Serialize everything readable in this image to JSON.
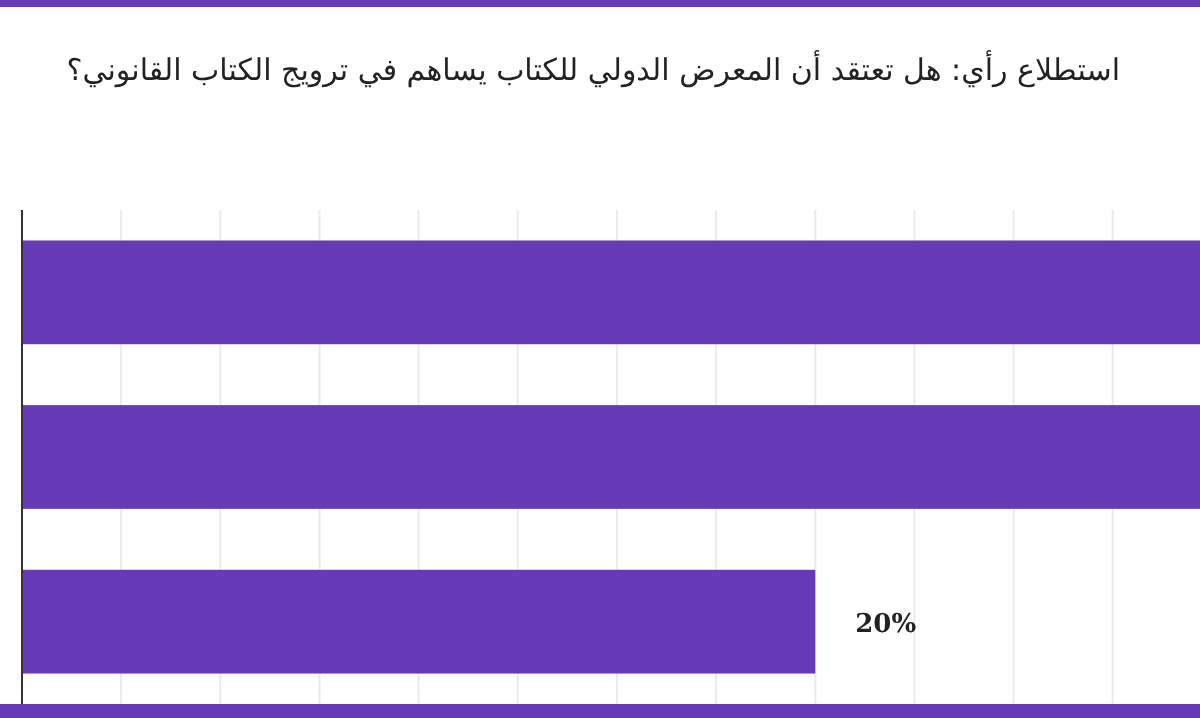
{
  "chart_data": {
    "type": "bar",
    "orientation": "horizontal",
    "title": "استطلاع رأي: هل تعتقد أن المعرض الدولي للكتاب يساهم في ترويج الكتاب القانوني؟",
    "categories": [
      null,
      null,
      null
    ],
    "values": [
      29.7,
      29.7,
      20
    ],
    "value_labels": [
      null,
      null,
      "20%"
    ],
    "color": "#673ab7",
    "xlim": [
      0,
      29.7
    ],
    "xticks": [
      {
        "value": 2.5,
        "label": null
      },
      {
        "value": 5,
        "label": null
      },
      {
        "value": 7.5,
        "label": null
      },
      {
        "value": 10,
        "label": null
      },
      {
        "value": 12.5,
        "label": null
      },
      {
        "value": 15,
        "label": null
      },
      {
        "value": 17.5,
        "label": null
      },
      {
        "value": 20,
        "label": null
      },
      {
        "value": 22.5,
        "label": null
      },
      {
        "value": 25,
        "label": null
      },
      {
        "value": 27.5,
        "label": null
      }
    ],
    "grid": "x"
  }
}
